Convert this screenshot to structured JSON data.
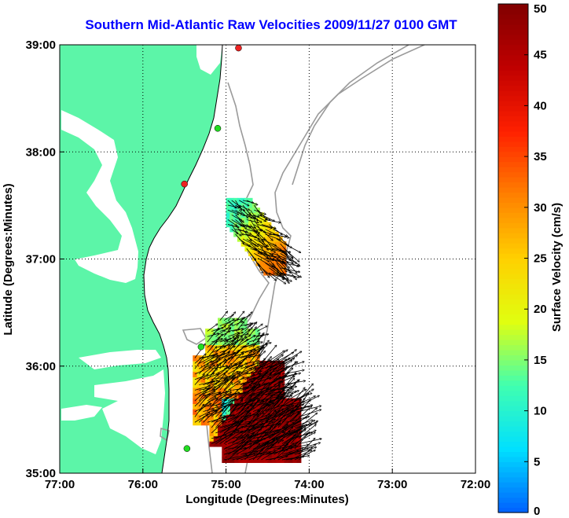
{
  "title": "Southern Mid-Atlantic Raw Velocities 2009/11/27 0100 GMT",
  "colors": {
    "land": "#5cf5a8",
    "ocean": "#ffffff",
    "contour": "#9a9a9a",
    "coast": "#000000",
    "title": "#0000ff",
    "station_green": "#22dd22",
    "station_red": "#ee2222"
  },
  "map": {
    "lon_range": [
      -77,
      -72
    ],
    "lat_range": [
      35,
      39
    ],
    "grid": "dotted",
    "xlabel": "Longitude (Degrees:Minutes)",
    "ylabel": "Latitude (Degrees:Minutes)",
    "x_ticks": [
      {
        "value": -77,
        "label": "77:00"
      },
      {
        "value": -76,
        "label": "76:00"
      },
      {
        "value": -75,
        "label": "75:00"
      },
      {
        "value": -74,
        "label": "74:00"
      },
      {
        "value": -73,
        "label": "73:00"
      },
      {
        "value": -72,
        "label": "72:00"
      }
    ],
    "y_ticks": [
      {
        "value": 35,
        "label": "35:00"
      },
      {
        "value": 36,
        "label": "36:00"
      },
      {
        "value": 37,
        "label": "37:00"
      },
      {
        "value": 38,
        "label": "38:00"
      },
      {
        "value": 39,
        "label": "39:00"
      }
    ],
    "stations": [
      {
        "lon": -74.85,
        "lat": 38.97,
        "color": "red"
      },
      {
        "lon": -75.1,
        "lat": 38.22,
        "color": "green"
      },
      {
        "lon": -75.5,
        "lat": 37.7,
        "color": "red"
      },
      {
        "lon": -75.3,
        "lat": 36.18,
        "color": "green"
      },
      {
        "lon": -75.47,
        "lat": 35.23,
        "color": "green"
      }
    ]
  },
  "colorbar": {
    "label": "Surface Velocity (cm/s)",
    "range": [
      0,
      50
    ],
    "units": "cm/s",
    "ticks": [
      {
        "value": 0,
        "label": "0"
      },
      {
        "value": 5,
        "label": "5"
      },
      {
        "value": 10,
        "label": "10"
      },
      {
        "value": 15,
        "label": "15"
      },
      {
        "value": 20,
        "label": "20"
      },
      {
        "value": 25,
        "label": "25"
      },
      {
        "value": 30,
        "label": "30"
      },
      {
        "value": 35,
        "label": "35"
      },
      {
        "value": 40,
        "label": "40"
      },
      {
        "value": 45,
        "label": "45"
      },
      {
        "value": 50,
        "label": "50"
      }
    ],
    "colormap": [
      "#0060ff",
      "#00e0ff",
      "#40ffb0",
      "#e0ff10",
      "#ffd000",
      "#ff8000",
      "#ff2000",
      "#c00000",
      "#800000"
    ]
  },
  "fields": [
    {
      "name": "northern",
      "lon_range": [
        -75.0,
        -74.28
      ],
      "lat_range": [
        36.85,
        37.55
      ],
      "speed_range_cm_s": [
        12,
        32
      ],
      "direction": "southeast"
    },
    {
      "name": "southern",
      "lon_range": [
        -75.4,
        -74.15
      ],
      "lat_range": [
        35.1,
        36.42
      ],
      "speed_range_cm_s": [
        8,
        50
      ],
      "direction": "northeast"
    }
  ]
}
